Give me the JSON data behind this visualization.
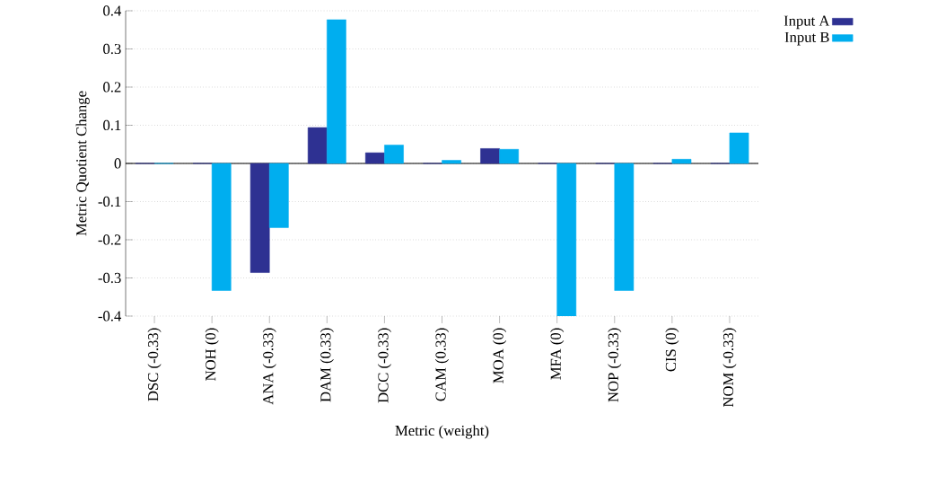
{
  "chart_data": {
    "type": "bar",
    "xlabel": "Metric (weight)",
    "ylabel": "Metric Quotient Change",
    "categories": [
      "DSC (-0.33)",
      "NOH (0)",
      "ANA (-0.33)",
      "DAM (0.33)",
      "DCC (-0.33)",
      "CAM (0.33)",
      "MOA (0)",
      "MFA (0)",
      "NOP (-0.33)",
      "CIS (0)",
      "NOM (-0.33)"
    ],
    "series": [
      {
        "name": "Input A",
        "color": "#2e3192",
        "values": [
          0,
          0,
          -0.286,
          0.094,
          0.028,
          0,
          0.039,
          0,
          0,
          0,
          0
        ]
      },
      {
        "name": "Input B",
        "color": "#00aeef",
        "values": [
          0,
          -0.333,
          -0.168,
          0.377,
          0.048,
          0.008,
          0.037,
          -0.4,
          -0.333,
          0.011,
          0.08
        ]
      }
    ],
    "ylim": [
      -0.4,
      0.4
    ],
    "yticks": [
      -0.4,
      -0.3,
      -0.2,
      -0.1,
      0,
      0.1,
      0.2,
      0.3,
      0.4
    ],
    "grid": "y",
    "legend": "top right"
  }
}
